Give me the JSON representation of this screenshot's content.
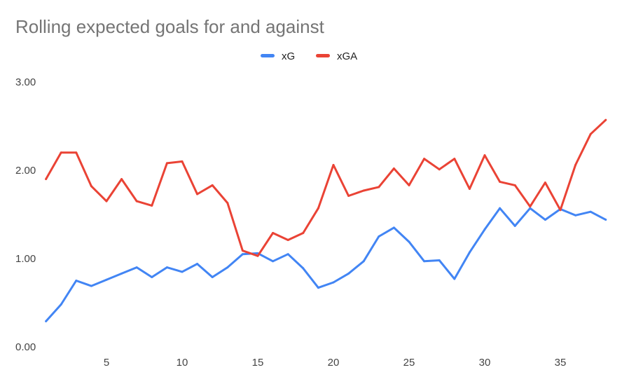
{
  "chart_data": {
    "type": "line",
    "title": "Rolling expected goals for and against",
    "xlabel": "",
    "ylabel": "",
    "xlim": [
      1,
      38
    ],
    "ylim": [
      0,
      3
    ],
    "y_ticks": [
      "0.00",
      "1.00",
      "2.00",
      "3.00"
    ],
    "y_tick_values": [
      0,
      1,
      2,
      3
    ],
    "x_ticks": [
      "5",
      "10",
      "15",
      "20",
      "25",
      "30",
      "35"
    ],
    "x_tick_values": [
      5,
      10,
      15,
      20,
      25,
      30,
      35
    ],
    "grid": false,
    "legend_position": "top-center",
    "x": [
      1,
      2,
      3,
      4,
      5,
      6,
      7,
      8,
      9,
      10,
      11,
      12,
      13,
      14,
      15,
      16,
      17,
      18,
      19,
      20,
      21,
      22,
      23,
      24,
      25,
      26,
      27,
      28,
      29,
      30,
      31,
      32,
      33,
      34,
      35,
      36,
      37,
      38
    ],
    "series": [
      {
        "name": "xG",
        "color": "#4285F4",
        "values": [
          0.29,
          0.48,
          0.75,
          0.69,
          0.76,
          0.83,
          0.9,
          0.79,
          0.9,
          0.85,
          0.94,
          0.79,
          0.9,
          1.05,
          1.06,
          0.97,
          1.05,
          0.89,
          0.67,
          0.73,
          0.83,
          0.97,
          1.25,
          1.35,
          1.19,
          0.97,
          0.98,
          0.77,
          1.07,
          1.33,
          1.57,
          1.37,
          1.57,
          1.44,
          1.56,
          1.49,
          1.53,
          1.44
        ]
      },
      {
        "name": "xGA",
        "color": "#EA4335",
        "values": [
          1.9,
          2.2,
          2.2,
          1.82,
          1.65,
          1.9,
          1.65,
          1.6,
          2.08,
          2.1,
          1.73,
          1.83,
          1.63,
          1.09,
          1.03,
          1.29,
          1.21,
          1.29,
          1.57,
          2.06,
          1.71,
          1.77,
          1.81,
          2.02,
          1.83,
          2.13,
          2.01,
          2.13,
          1.79,
          2.17,
          1.87,
          1.83,
          1.59,
          1.86,
          1.55,
          2.06,
          2.41,
          2.57
        ]
      }
    ]
  }
}
